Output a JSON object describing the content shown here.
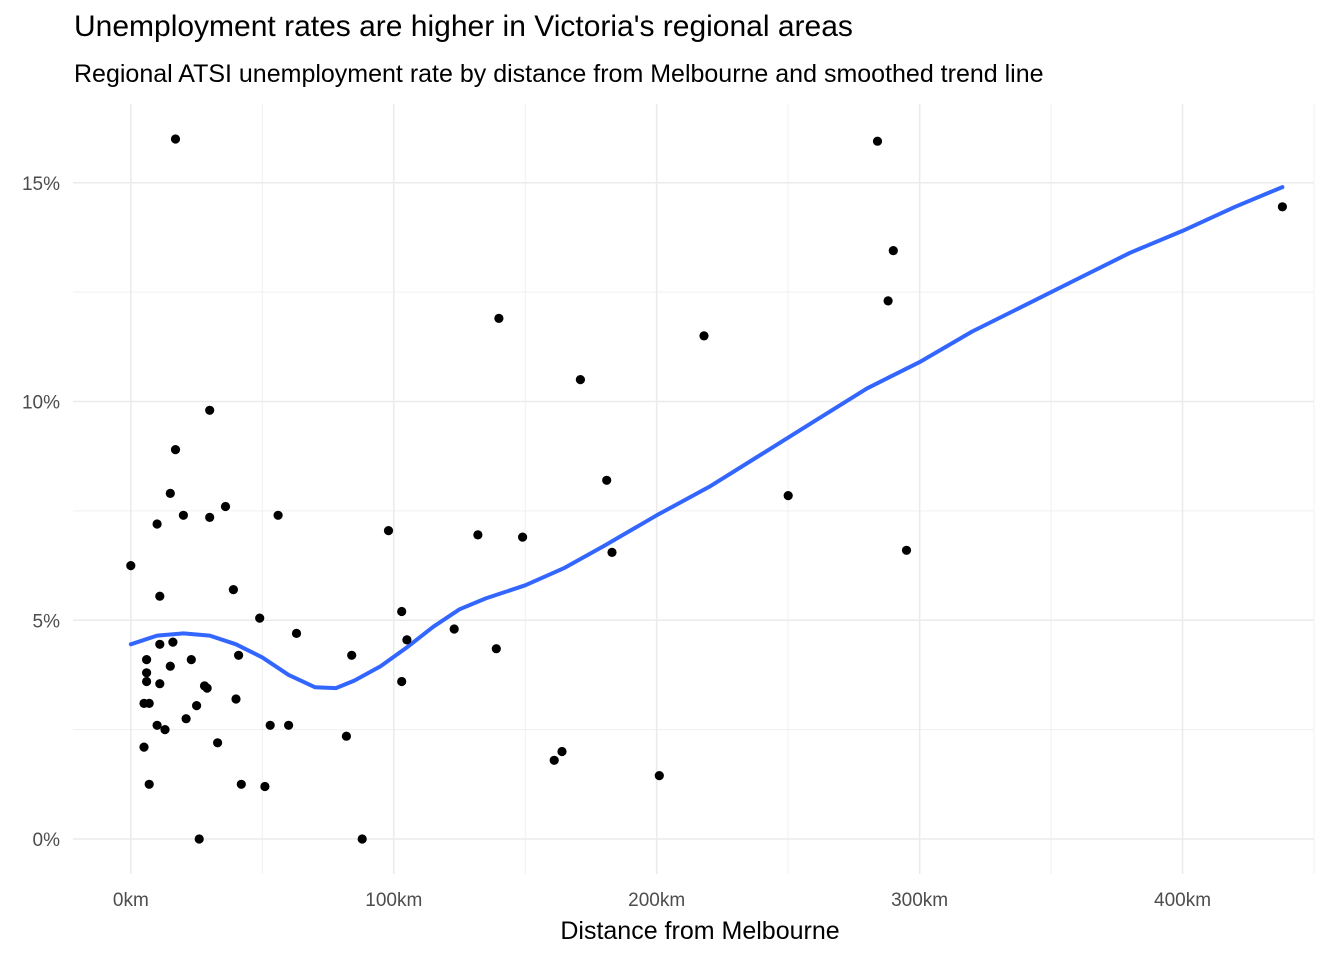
{
  "chart_data": {
    "type": "scatter",
    "title": "Unemployment rates are higher in Victoria's regional areas",
    "subtitle": "Regional ATSI unemployment rate by distance from Melbourne and smoothed trend line",
    "xlabel": "Distance from Melbourne",
    "ylabel": "",
    "xlim": [
      -22,
      450
    ],
    "ylim": [
      -0.8,
      16.8
    ],
    "x_ticks": [
      0,
      100,
      200,
      300,
      400
    ],
    "x_tick_labels": [
      "0km",
      "100km",
      "200km",
      "300km",
      "400km"
    ],
    "y_ticks": [
      0,
      5,
      10,
      15
    ],
    "y_tick_labels": [
      "0%",
      "5%",
      "10%",
      "15%"
    ],
    "grid": true,
    "point_color": "#000000",
    "trend_color": "#3366FF",
    "points": [
      {
        "x": 0,
        "y": 6.25
      },
      {
        "x": 5,
        "y": 2.1
      },
      {
        "x": 5,
        "y": 3.1
      },
      {
        "x": 6,
        "y": 3.8
      },
      {
        "x": 6,
        "y": 3.6
      },
      {
        "x": 6,
        "y": 4.1
      },
      {
        "x": 7,
        "y": 3.1
      },
      {
        "x": 7,
        "y": 1.25
      },
      {
        "x": 10,
        "y": 7.2
      },
      {
        "x": 10,
        "y": 2.6
      },
      {
        "x": 11,
        "y": 4.45
      },
      {
        "x": 11,
        "y": 3.55
      },
      {
        "x": 11,
        "y": 5.55
      },
      {
        "x": 13,
        "y": 2.5
      },
      {
        "x": 15,
        "y": 7.9
      },
      {
        "x": 15,
        "y": 3.95
      },
      {
        "x": 16,
        "y": 4.5
      },
      {
        "x": 17,
        "y": 8.9
      },
      {
        "x": 17,
        "y": 16.0
      },
      {
        "x": 20,
        "y": 7.4
      },
      {
        "x": 21,
        "y": 2.75
      },
      {
        "x": 23,
        "y": 4.1
      },
      {
        "x": 25,
        "y": 3.05
      },
      {
        "x": 26,
        "y": 0.0
      },
      {
        "x": 28,
        "y": 3.5
      },
      {
        "x": 29,
        "y": 3.45
      },
      {
        "x": 30,
        "y": 9.8
      },
      {
        "x": 30,
        "y": 7.35
      },
      {
        "x": 33,
        "y": 2.2
      },
      {
        "x": 36,
        "y": 7.6
      },
      {
        "x": 39,
        "y": 5.7
      },
      {
        "x": 40,
        "y": 3.2
      },
      {
        "x": 41,
        "y": 4.2
      },
      {
        "x": 42,
        "y": 1.25
      },
      {
        "x": 49,
        "y": 5.05
      },
      {
        "x": 51,
        "y": 1.2
      },
      {
        "x": 53,
        "y": 2.6
      },
      {
        "x": 56,
        "y": 7.4
      },
      {
        "x": 60,
        "y": 2.6
      },
      {
        "x": 63,
        "y": 4.7
      },
      {
        "x": 82,
        "y": 2.35
      },
      {
        "x": 84,
        "y": 4.2
      },
      {
        "x": 88,
        "y": 0.0
      },
      {
        "x": 98,
        "y": 7.05
      },
      {
        "x": 103,
        "y": 3.6
      },
      {
        "x": 103,
        "y": 5.2
      },
      {
        "x": 105,
        "y": 4.55
      },
      {
        "x": 123,
        "y": 4.8
      },
      {
        "x": 132,
        "y": 6.95
      },
      {
        "x": 139,
        "y": 4.35
      },
      {
        "x": 140,
        "y": 11.9
      },
      {
        "x": 149,
        "y": 6.9
      },
      {
        "x": 161,
        "y": 1.8
      },
      {
        "x": 164,
        "y": 2.0
      },
      {
        "x": 171,
        "y": 10.5
      },
      {
        "x": 181,
        "y": 8.2
      },
      {
        "x": 183,
        "y": 6.55
      },
      {
        "x": 201,
        "y": 1.45
      },
      {
        "x": 218,
        "y": 11.5
      },
      {
        "x": 250,
        "y": 7.85
      },
      {
        "x": 284,
        "y": 15.95
      },
      {
        "x": 288,
        "y": 12.3
      },
      {
        "x": 290,
        "y": 13.45
      },
      {
        "x": 295,
        "y": 6.6
      },
      {
        "x": 438,
        "y": 14.45
      }
    ],
    "trend": [
      {
        "x": 0,
        "y": 4.45
      },
      {
        "x": 10,
        "y": 4.65
      },
      {
        "x": 20,
        "y": 4.7
      },
      {
        "x": 30,
        "y": 4.65
      },
      {
        "x": 40,
        "y": 4.45
      },
      {
        "x": 50,
        "y": 4.15
      },
      {
        "x": 60,
        "y": 3.75
      },
      {
        "x": 70,
        "y": 3.47
      },
      {
        "x": 78,
        "y": 3.45
      },
      {
        "x": 85,
        "y": 3.62
      },
      {
        "x": 95,
        "y": 3.95
      },
      {
        "x": 105,
        "y": 4.38
      },
      {
        "x": 115,
        "y": 4.85
      },
      {
        "x": 125,
        "y": 5.25
      },
      {
        "x": 135,
        "y": 5.5
      },
      {
        "x": 150,
        "y": 5.8
      },
      {
        "x": 165,
        "y": 6.2
      },
      {
        "x": 180,
        "y": 6.7
      },
      {
        "x": 200,
        "y": 7.4
      },
      {
        "x": 220,
        "y": 8.05
      },
      {
        "x": 240,
        "y": 8.8
      },
      {
        "x": 260,
        "y": 9.55
      },
      {
        "x": 280,
        "y": 10.3
      },
      {
        "x": 300,
        "y": 10.9
      },
      {
        "x": 320,
        "y": 11.6
      },
      {
        "x": 340,
        "y": 12.2
      },
      {
        "x": 360,
        "y": 12.8
      },
      {
        "x": 380,
        "y": 13.4
      },
      {
        "x": 400,
        "y": 13.9
      },
      {
        "x": 420,
        "y": 14.45
      },
      {
        "x": 438,
        "y": 14.9
      }
    ]
  }
}
